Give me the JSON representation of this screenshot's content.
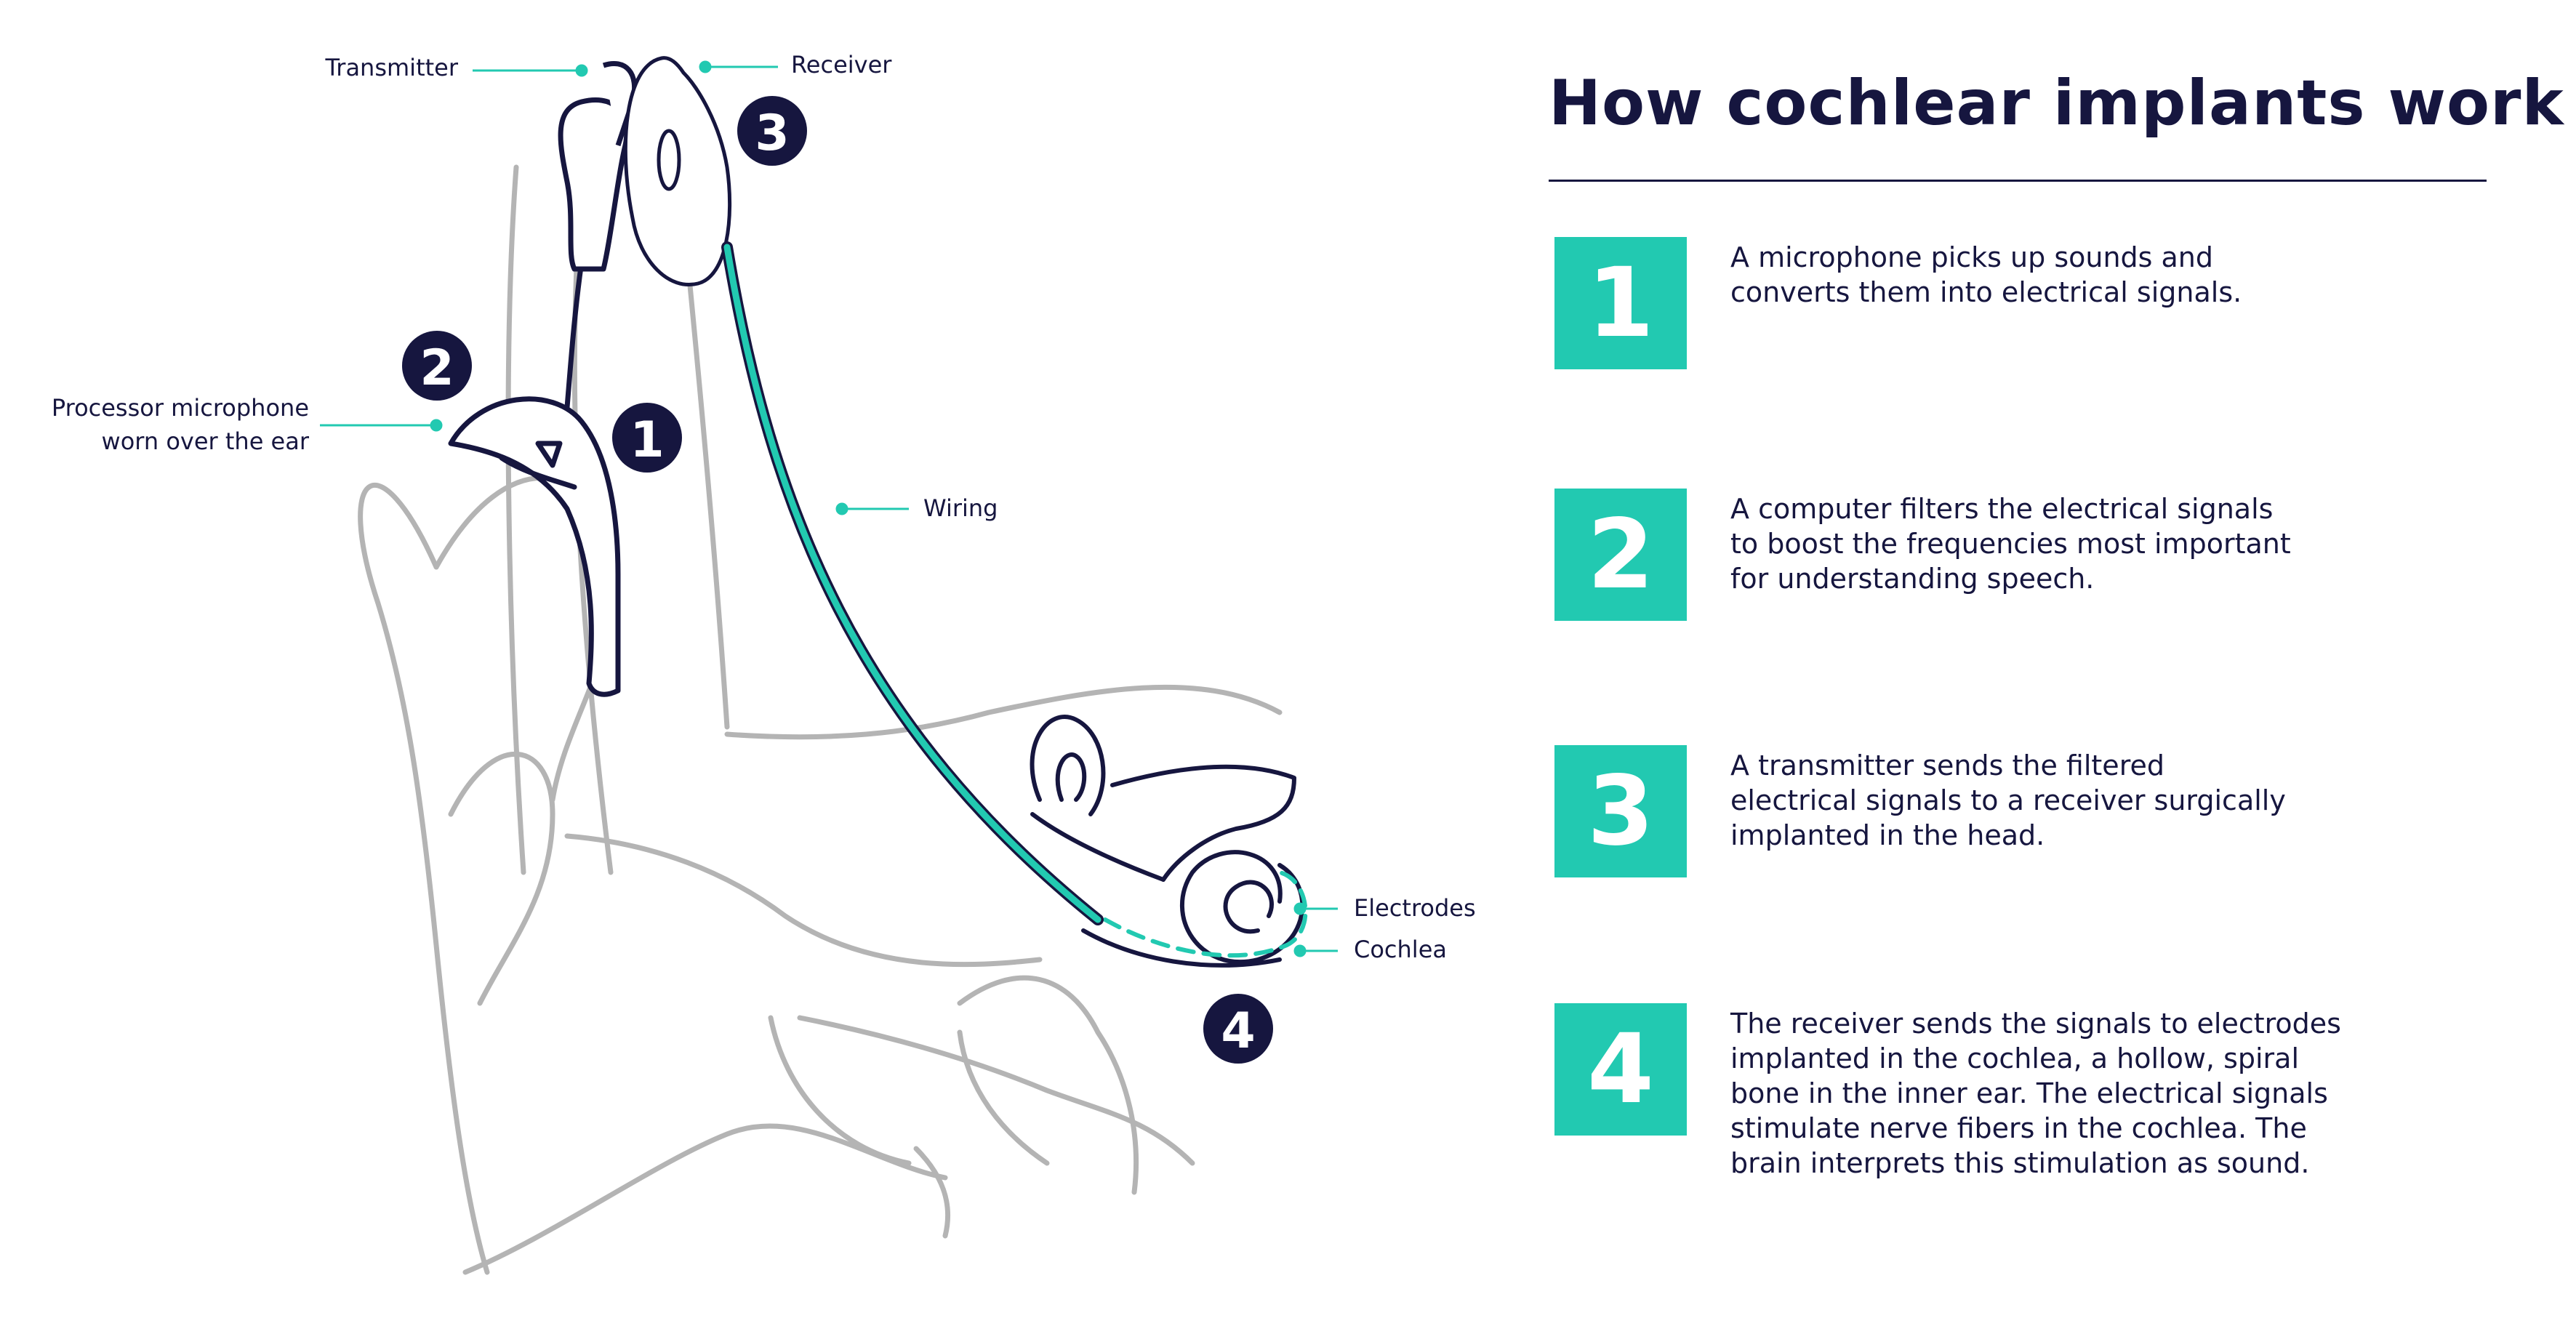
{
  "title": "How cochlear implants work",
  "labels": {
    "transmitter": "Transmitter",
    "receiver": "Receiver",
    "processor_line1": "Processor microphone",
    "processor_line2": "worn over the ear",
    "wiring": "Wiring",
    "electrodes": "Electrodes",
    "cochlea": "Cochlea"
  },
  "markers": [
    "1",
    "2",
    "3",
    "4"
  ],
  "steps": [
    {
      "number": "1",
      "text": "A microphone picks up sounds and converts them into electrical signals."
    },
    {
      "number": "2",
      "text": "A computer filters the electrical signals to boost the frequencies most important for understanding speech."
    },
    {
      "number": "3",
      "text": "A transmitter sends the filtered electrical signals to a receiver surgically implanted in the head."
    },
    {
      "number": "4",
      "text": "The receiver sends the signals to electrodes implanted in the cochlea, a hollow, spiral bone in the inner ear. The electrical signals stimulate nerve fibers in the cochlea. The brain interprets this stimulation as sound."
    }
  ],
  "colors": {
    "navy": "#16163f",
    "teal": "#22c9b1",
    "gray_line": "#b4b4b4"
  }
}
